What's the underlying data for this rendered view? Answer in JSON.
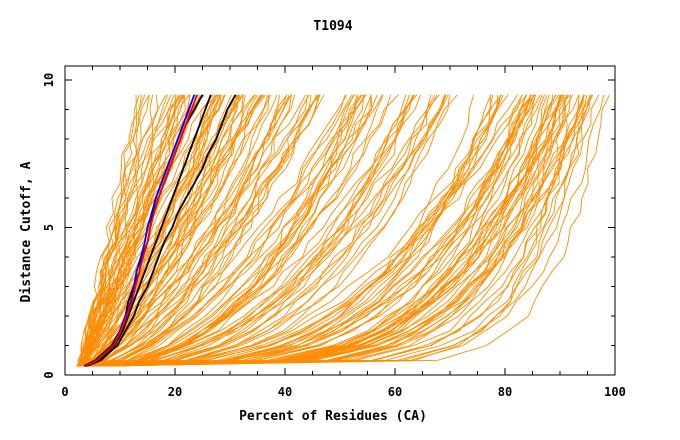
{
  "chart_data": {
    "type": "line",
    "title": "T1094",
    "xlabel": "Percent of Residues (CA)",
    "ylabel": "Distance Cutoff, A",
    "xlim": [
      0,
      100
    ],
    "ylim": [
      0,
      10
    ],
    "x_ticks": [
      "0",
      "20",
      "40",
      "60",
      "80",
      "100"
    ],
    "y_ticks": [
      "0",
      "5",
      "10"
    ],
    "grid": false,
    "background_curve_color": "#ff8c00",
    "highlight_colors": [
      "#000000",
      "#0000ff",
      "#ff0000"
    ],
    "y": [
      0.3,
      0.5,
      1,
      1.5,
      2,
      2.5,
      3,
      3.5,
      4,
      4.5,
      5,
      5.5,
      6,
      6.5,
      7,
      7.5,
      8,
      8.5,
      9,
      9.5
    ],
    "family_note": "Orange background curves form families ending at x ≈ 22, 30, 42, 55, 67, 80, 88, 93, 97",
    "series": [
      {
        "color": "#000000",
        "x": [
          3.5,
          5.5,
          8.5,
          10,
          11,
          11.5,
          12.5,
          13.5,
          14,
          15,
          15.5,
          16,
          17,
          18,
          19,
          20,
          21,
          22,
          23.5,
          25
        ]
      },
      {
        "color": "#000000",
        "x": [
          3.8,
          6,
          9,
          10.5,
          11.5,
          12.5,
          13.5,
          14.5,
          15.5,
          16.5,
          17.5,
          18.5,
          19.5,
          20.5,
          21.5,
          22.5,
          23.5,
          24.5,
          25.5,
          26.5
        ]
      },
      {
        "color": "#000000",
        "x": [
          4,
          6.5,
          9.5,
          11,
          12.5,
          13.5,
          15,
          16,
          17,
          18,
          19.5,
          20.5,
          22,
          23.5,
          25,
          26,
          27.5,
          28.5,
          29.5,
          31
        ]
      },
      {
        "color": "#0000ff",
        "x": [
          3.8,
          5.8,
          8.8,
          10,
          11,
          12,
          12.5,
          13,
          13.8,
          14.5,
          15,
          15.8,
          16.5,
          17.5,
          18.5,
          19.5,
          20.5,
          21.5,
          22.5,
          23.5
        ]
      },
      {
        "color": "#ff0000",
        "x": [
          3.8,
          5.8,
          8.8,
          10.2,
          11.2,
          12.2,
          12.8,
          13.5,
          14.2,
          15,
          15.5,
          16.2,
          17,
          18,
          19,
          20,
          21,
          22,
          23,
          24
        ]
      }
    ]
  }
}
